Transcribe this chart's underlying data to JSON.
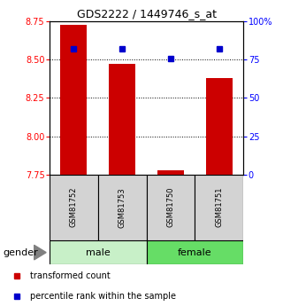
{
  "title": "GDS2222 / 1449746_s_at",
  "samples": [
    "GSM81752",
    "GSM81753",
    "GSM81750",
    "GSM81751"
  ],
  "bar_values": [
    8.73,
    8.47,
    7.778,
    8.38
  ],
  "bar_bottom": 7.75,
  "percentile_values": [
    82,
    82,
    76,
    82
  ],
  "ylim_left": [
    7.75,
    8.75
  ],
  "ylim_right": [
    0,
    100
  ],
  "yticks_left": [
    7.75,
    8.0,
    8.25,
    8.5,
    8.75
  ],
  "yticks_right": [
    0,
    25,
    50,
    75,
    100
  ],
  "grid_lines": [
    8.0,
    8.25,
    8.5
  ],
  "gender_groups": [
    {
      "label": "male",
      "start": 0,
      "end": 2,
      "color": "#c8f0c8"
    },
    {
      "label": "female",
      "start": 2,
      "end": 4,
      "color": "#66dd66"
    }
  ],
  "bar_color": "#cc0000",
  "percentile_color": "#0000cc",
  "sample_box_color": "#d3d3d3",
  "legend_items": [
    {
      "color": "#cc0000",
      "label": "transformed count"
    },
    {
      "color": "#0000cc",
      "label": "percentile rank within the sample"
    }
  ]
}
